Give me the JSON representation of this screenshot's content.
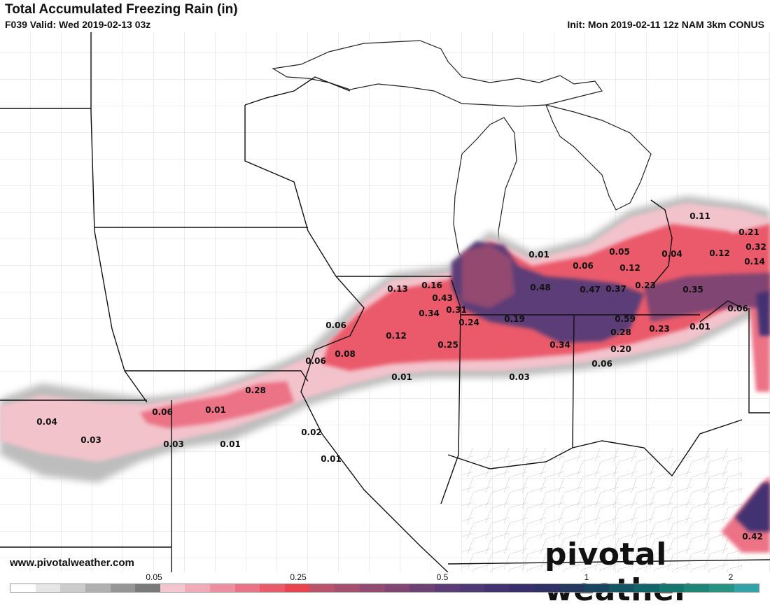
{
  "header": {
    "title": "Total Accumulated Freezing Rain (in)",
    "valid": "F039 Valid: Wed 2019-02-13 03z",
    "init": "Init: Mon 2019-02-11 12z NAM 3km CONUS"
  },
  "footer": {
    "website": "www.pivotalweather.com",
    "brand_name": "pivotal weather"
  },
  "colorbar": {
    "colors": [
      "#ffffff",
      "#e6e6e6",
      "#cccccc",
      "#b0b0b0",
      "#969696",
      "#7a7a7a",
      "#f5c6cf",
      "#f2aab8",
      "#ef8e9f",
      "#ec7285",
      "#ea5a6a",
      "#e8434f",
      "#b9536c",
      "#a64f6e",
      "#934a70",
      "#804572",
      "#6d4174",
      "#5b3c77",
      "#4e3875",
      "#433372",
      "#3a2f6e",
      "#2f3068",
      "#23375f",
      "#1a4561",
      "#145564",
      "#116468",
      "#15756f",
      "#1c8478",
      "#279382",
      "#33a3aa"
    ],
    "tick_labels": [
      "0.05",
      "0.25",
      "0.5",
      "1",
      "2"
    ]
  },
  "map": {
    "value_labels": [
      {
        "text": "0.11"
      },
      {
        "text": "0.21"
      },
      {
        "text": "0.32"
      },
      {
        "text": "0.14"
      },
      {
        "text": "0.12"
      },
      {
        "text": "0.04"
      },
      {
        "text": "0.05"
      },
      {
        "text": "0.12"
      },
      {
        "text": "0.06"
      },
      {
        "text": "0.01"
      },
      {
        "text": "0.23"
      },
      {
        "text": "0.35"
      },
      {
        "text": "0.37"
      },
      {
        "text": "0.47"
      },
      {
        "text": "0.48"
      },
      {
        "text": "0.13"
      },
      {
        "text": "0.16"
      },
      {
        "text": "0.43"
      },
      {
        "text": "0.31"
      },
      {
        "text": "0.34"
      },
      {
        "text": "0.24"
      },
      {
        "text": "0.19"
      },
      {
        "text": "0.59"
      },
      {
        "text": "0.28"
      },
      {
        "text": "0.23"
      },
      {
        "text": "0.01"
      },
      {
        "text": "0.06"
      },
      {
        "text": "0.06"
      },
      {
        "text": "0.12"
      },
      {
        "text": "0.25"
      },
      {
        "text": "0.34"
      },
      {
        "text": "0.20"
      },
      {
        "text": "0.06"
      },
      {
        "text": "0.08"
      },
      {
        "text": "0.06"
      },
      {
        "text": "0.01"
      },
      {
        "text": "0.03"
      },
      {
        "text": "0.28"
      },
      {
        "text": "0.06"
      },
      {
        "text": "0.01"
      },
      {
        "text": "0.04"
      },
      {
        "text": "0.03"
      },
      {
        "text": "0.03"
      },
      {
        "text": "0.01"
      },
      {
        "text": "0.02"
      },
      {
        "text": "0.01"
      },
      {
        "text": "0.42"
      }
    ]
  }
}
